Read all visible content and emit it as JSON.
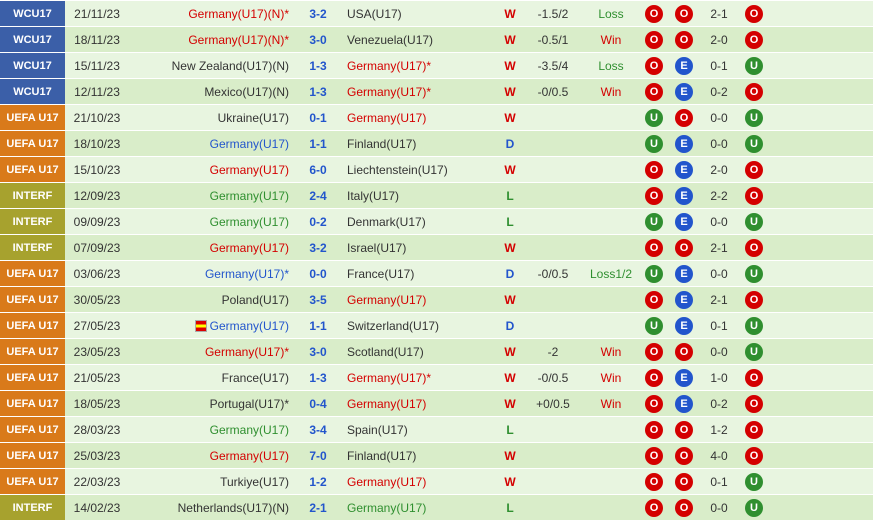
{
  "colors": {
    "compBg": {
      "WCU17": "#3b5fa8",
      "UEFA U17": "#d97a1a",
      "INTERF": "#a7a22e"
    },
    "team": {
      "red": "#d40000",
      "blue": "#2255cc",
      "green": "#2f8f2f",
      "black": "#333333"
    },
    "result": {
      "W": "#d40000",
      "D": "#2255cc",
      "L": "#2f8f2f"
    },
    "hcapRes": {
      "Win": "#d40000",
      "Loss": "#2f8f2f",
      "Loss1/2": "#2f8f2f"
    },
    "circle": {
      "O": "#d40000",
      "U": "#2f8f2f",
      "E": "#2255cc"
    }
  },
  "rows": [
    {
      "comp": "WCU17",
      "date": "21/11/23",
      "home": "Germany(U17)(N)*",
      "homeC": "red",
      "score": "3-2",
      "away": "USA(U17)",
      "awayC": "black",
      "res": "W",
      "hcap": "-1.5/2",
      "hcapRes": "Loss",
      "b1": "O",
      "b2": "O",
      "half": "2-1",
      "b3": "O"
    },
    {
      "comp": "WCU17",
      "date": "18/11/23",
      "home": "Germany(U17)(N)*",
      "homeC": "red",
      "score": "3-0",
      "away": "Venezuela(U17)",
      "awayC": "black",
      "res": "W",
      "hcap": "-0.5/1",
      "hcapRes": "Win",
      "b1": "O",
      "b2": "O",
      "half": "2-0",
      "b3": "O"
    },
    {
      "comp": "WCU17",
      "date": "15/11/23",
      "home": "New Zealand(U17)(N)",
      "homeC": "black",
      "score": "1-3",
      "away": "Germany(U17)*",
      "awayC": "red",
      "res": "W",
      "hcap": "-3.5/4",
      "hcapRes": "Loss",
      "b1": "O",
      "b2": "E",
      "half": "0-1",
      "b3": "U"
    },
    {
      "comp": "WCU17",
      "date": "12/11/23",
      "home": "Mexico(U17)(N)",
      "homeC": "black",
      "score": "1-3",
      "away": "Germany(U17)*",
      "awayC": "red",
      "res": "W",
      "hcap": "-0/0.5",
      "hcapRes": "Win",
      "b1": "O",
      "b2": "E",
      "half": "0-2",
      "b3": "O"
    },
    {
      "comp": "UEFA U17",
      "date": "21/10/23",
      "home": "Ukraine(U17)",
      "homeC": "black",
      "score": "0-1",
      "away": "Germany(U17)",
      "awayC": "red",
      "res": "W",
      "hcap": "",
      "hcapRes": "",
      "b1": "U",
      "b2": "O",
      "half": "0-0",
      "b3": "U"
    },
    {
      "comp": "UEFA U17",
      "date": "18/10/23",
      "home": "Germany(U17)",
      "homeC": "blue",
      "score": "1-1",
      "away": "Finland(U17)",
      "awayC": "black",
      "res": "D",
      "hcap": "",
      "hcapRes": "",
      "b1": "U",
      "b2": "E",
      "half": "0-0",
      "b3": "U"
    },
    {
      "comp": "UEFA U17",
      "date": "15/10/23",
      "home": "Germany(U17)",
      "homeC": "red",
      "score": "6-0",
      "away": "Liechtenstein(U17)",
      "awayC": "black",
      "res": "W",
      "hcap": "",
      "hcapRes": "",
      "b1": "O",
      "b2": "E",
      "half": "2-0",
      "b3": "O"
    },
    {
      "comp": "INTERF",
      "date": "12/09/23",
      "home": "Germany(U17)",
      "homeC": "green",
      "score": "2-4",
      "away": "Italy(U17)",
      "awayC": "black",
      "res": "L",
      "hcap": "",
      "hcapRes": "",
      "b1": "O",
      "b2": "E",
      "half": "2-2",
      "b3": "O"
    },
    {
      "comp": "INTERF",
      "date": "09/09/23",
      "home": "Germany(U17)",
      "homeC": "green",
      "score": "0-2",
      "away": "Denmark(U17)",
      "awayC": "black",
      "res": "L",
      "hcap": "",
      "hcapRes": "",
      "b1": "U",
      "b2": "E",
      "half": "0-0",
      "b3": "U"
    },
    {
      "comp": "INTERF",
      "date": "07/09/23",
      "home": "Germany(U17)",
      "homeC": "red",
      "score": "3-2",
      "away": "Israel(U17)",
      "awayC": "black",
      "res": "W",
      "hcap": "",
      "hcapRes": "",
      "b1": "O",
      "b2": "O",
      "half": "2-1",
      "b3": "O"
    },
    {
      "comp": "UEFA U17",
      "date": "03/06/23",
      "home": "Germany(U17)*",
      "homeC": "blue",
      "score": "0-0",
      "away": "France(U17)",
      "awayC": "black",
      "res": "D",
      "hcap": "-0/0.5",
      "hcapRes": "Loss1/2",
      "b1": "U",
      "b2": "E",
      "half": "0-0",
      "b3": "U"
    },
    {
      "comp": "UEFA U17",
      "date": "30/05/23",
      "home": "Poland(U17)",
      "homeC": "black",
      "score": "3-5",
      "away": "Germany(U17)",
      "awayC": "red",
      "res": "W",
      "hcap": "",
      "hcapRes": "",
      "b1": "O",
      "b2": "E",
      "half": "2-1",
      "b3": "O"
    },
    {
      "comp": "UEFA U17",
      "date": "27/05/23",
      "home": "Germany(U17)",
      "homeC": "blue",
      "flag": true,
      "score": "1-1",
      "away": "Switzerland(U17)",
      "awayC": "black",
      "res": "D",
      "hcap": "",
      "hcapRes": "",
      "b1": "U",
      "b2": "E",
      "half": "0-1",
      "b3": "U"
    },
    {
      "comp": "UEFA U17",
      "date": "23/05/23",
      "home": "Germany(U17)*",
      "homeC": "red",
      "score": "3-0",
      "away": "Scotland(U17)",
      "awayC": "black",
      "res": "W",
      "hcap": "-2",
      "hcapRes": "Win",
      "b1": "O",
      "b2": "O",
      "half": "0-0",
      "b3": "U"
    },
    {
      "comp": "UEFA U17",
      "date": "21/05/23",
      "home": "France(U17)",
      "homeC": "black",
      "score": "1-3",
      "away": "Germany(U17)*",
      "awayC": "red",
      "res": "W",
      "hcap": "-0/0.5",
      "hcapRes": "Win",
      "b1": "O",
      "b2": "E",
      "half": "1-0",
      "b3": "O"
    },
    {
      "comp": "UEFA U17",
      "date": "18/05/23",
      "home": "Portugal(U17)*",
      "homeC": "black",
      "score": "0-4",
      "away": "Germany(U17)",
      "awayC": "red",
      "res": "W",
      "hcap": "+0/0.5",
      "hcapRes": "Win",
      "b1": "O",
      "b2": "E",
      "half": "0-2",
      "b3": "O"
    },
    {
      "comp": "UEFA U17",
      "date": "28/03/23",
      "home": "Germany(U17)",
      "homeC": "green",
      "score": "3-4",
      "away": "Spain(U17)",
      "awayC": "black",
      "res": "L",
      "hcap": "",
      "hcapRes": "",
      "b1": "O",
      "b2": "O",
      "half": "1-2",
      "b3": "O"
    },
    {
      "comp": "UEFA U17",
      "date": "25/03/23",
      "home": "Germany(U17)",
      "homeC": "red",
      "score": "7-0",
      "away": "Finland(U17)",
      "awayC": "black",
      "res": "W",
      "hcap": "",
      "hcapRes": "",
      "b1": "O",
      "b2": "O",
      "half": "4-0",
      "b3": "O"
    },
    {
      "comp": "UEFA U17",
      "date": "22/03/23",
      "home": "Turkiye(U17)",
      "homeC": "black",
      "score": "1-2",
      "away": "Germany(U17)",
      "awayC": "red",
      "res": "W",
      "hcap": "",
      "hcapRes": "",
      "b1": "O",
      "b2": "O",
      "half": "0-1",
      "b3": "U"
    },
    {
      "comp": "INTERF",
      "date": "14/02/23",
      "home": "Netherlands(U17)(N)",
      "homeC": "black",
      "score": "2-1",
      "away": "Germany(U17)",
      "awayC": "green",
      "res": "L",
      "hcap": "",
      "hcapRes": "",
      "b1": "O",
      "b2": "O",
      "half": "0-0",
      "b3": "U"
    }
  ]
}
